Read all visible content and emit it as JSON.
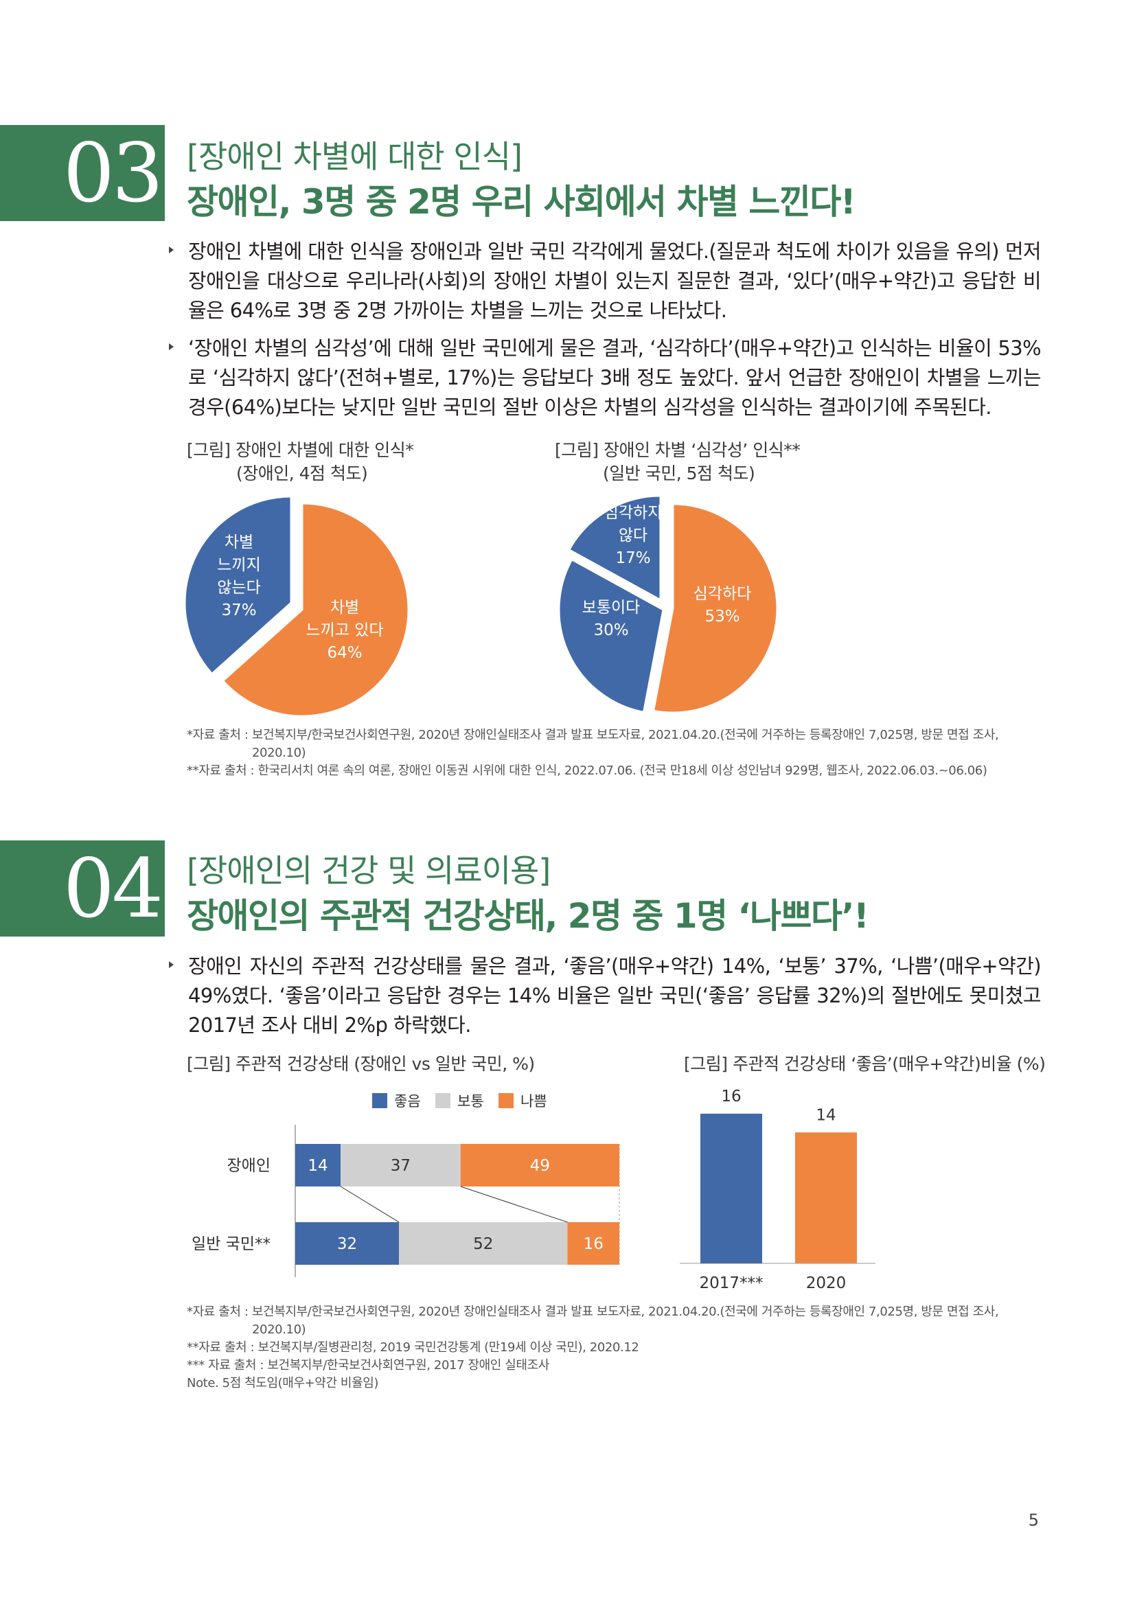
{
  "section3": {
    "number": "03",
    "subtitle": "[장애인 차별에 대한 인식]",
    "title": "장애인, 3명 중 2명 우리 사회에서 차별 느낀다!",
    "bullets": [
      "장애인 차별에 대한 인식을 장애인과 일반 국민 각각에게 물었다.(질문과 척도에 차이가 있음을 유의) 먼저 장애인을 대상으로 우리나라(사회)의 장애인 차별이 있는지 질문한 결과, ‘있다’(매우+약간)고 응답한 비율은 64%로 3명 중 2명 가까이는 차별을 느끼는 것으로 나타났다.",
      "‘장애인 차별의 심각성’에 대해 일반 국민에게 물은 결과, ‘심각하다’(매우+약간)고 인식하는 비율이 53%로 ‘심각하지 않다’(전혀+별로, 17%)는 응답보다 3배 정도 높았다. 앞서 언급한 장애인이 차별을 느끼는 경우(64%)보다는 낮지만 일반 국민의 절반 이상은 차별의 심각성을 인식하는 결과이기에 주목된다."
    ],
    "fig1_caption": "[그림] 장애인 차별에 대한 인식*",
    "fig1_sub": "(장애인, 4점 척도)",
    "fig2_caption": "[그림] 장애인 차별 ‘심각성’ 인식**",
    "fig2_sub": "(일반 국민, 5점 척도)",
    "source1": "*자료 출처 : 보건복지부/한국보건사회연구원, 2020년 장애인실태조사 결과 발표 보도자료, 2021.04.20.(전국에 거주하는 등록장애인 7,025명, 방문 면접 조사,",
    "source1b": "2020.10)",
    "source2": "**자료 출처 : 한국리서치 여론 속의 여론, 장애인 이동권 시위에 대한 인식, 2022.07.06. (전국 만18세 이상 성인남녀 929명, 웹조사, 2022.06.03.~06.06)"
  },
  "section4": {
    "number": "04",
    "subtitle": "[장애인의 건강 및 의료이용]",
    "title": "장애인의 주관적 건강상태, 2명 중 1명 ‘나쁘다’!",
    "bullets": [
      "장애인 자신의 주관적 건강상태를 물은 결과, ‘좋음’(매우+약간) 14%, ‘보통’ 37%, ‘나쁨’(매우+약간) 49%였다. ‘좋음’이라고 응답한 경우는 14% 비율은 일반 국민(‘좋음’ 응답률 32%)의 절반에도 못미쳤고 2017년 조사 대비 2%p 하락했다."
    ],
    "fig3_caption": "[그림] 주관적 건강상태 (장애인 vs 일반 국민, %)",
    "fig4_caption": "[그림] 주관적 건강상태 ‘좋음’(매우+약간)비율 (%)",
    "sources": [
      "*자료 출처 : 보건복지부/한국보건사회연구원, 2020년 장애인실태조사 결과 발표 보도자료, 2021.04.20.(전국에 거주하는 등록장애인 7,025명, 방문 면접 조사,",
      "2020.10)",
      "**자료 출처 : 보건복지부/질병관리청, 2019 국민건강통계 (만19세 이상 국민), 2020.12",
      "*** 자료 출처 : 보건복지부/한국보건사회연구원, 2017 장애인 실태조사",
      "Note. 5점 척도임(매우+약간 비율임)"
    ]
  },
  "page_number": "5",
  "colors": {
    "green": "#3c7f56",
    "blue": "#4169a8",
    "orange": "#f08540",
    "gray": "#d0d0d0"
  },
  "chart_data": [
    {
      "type": "pie",
      "slices": [
        {
          "label_lines": [
            "차별",
            "느끼고 있다",
            "64%"
          ],
          "value": 64,
          "color": "#f08540"
        },
        {
          "label_lines": [
            "차별",
            "느끼지",
            "않는다",
            "37%"
          ],
          "value": 37,
          "color": "#4169a8"
        }
      ]
    },
    {
      "type": "pie",
      "slices": [
        {
          "label_lines": [
            "심각하다",
            "53%"
          ],
          "value": 53,
          "color": "#f08540"
        },
        {
          "label_lines": [
            "보통이다",
            "30%"
          ],
          "value": 30,
          "color": "#4169a8"
        },
        {
          "label_lines": [
            "심각하지",
            "않다",
            "17%"
          ],
          "value": 17,
          "color": "#4169a8"
        }
      ]
    },
    {
      "type": "bar",
      "orientation": "horizontal-stacked",
      "legend": [
        "좋음",
        "보통",
        "나쁨"
      ],
      "categories": [
        "장애인",
        "일반 국민**"
      ],
      "series": [
        {
          "name": "좋음",
          "values": [
            14,
            32
          ],
          "color": "#4169a8"
        },
        {
          "name": "보통",
          "values": [
            37,
            52
          ],
          "color": "#d0d0d0"
        },
        {
          "name": "나쁨",
          "values": [
            49,
            16
          ],
          "color": "#f08540"
        }
      ]
    },
    {
      "type": "bar",
      "categories": [
        "2017***",
        "2020"
      ],
      "values": [
        16,
        14
      ],
      "colors": [
        "#4169a8",
        "#f08540"
      ]
    }
  ]
}
